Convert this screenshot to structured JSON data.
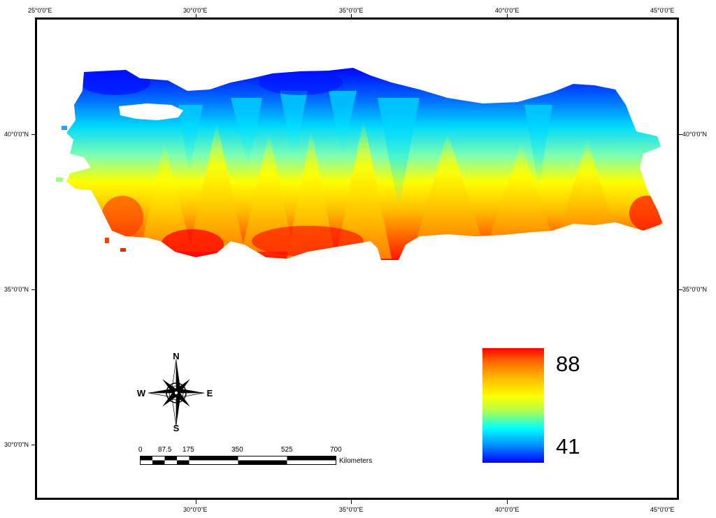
{
  "map": {
    "lon_labels": [
      "25°0'0\"E",
      "30°0'0\"E",
      "35°0'0\"E",
      "40°0'0\"E",
      "45°0'0\"E"
    ],
    "lat_labels": [
      "40°0'0\"N",
      "35°0'0\"N",
      "30°0'0\"N"
    ],
    "colors": {
      "high": "#ff0000",
      "mid": "#ffff00",
      "low": "#0000ff"
    }
  },
  "legend": {
    "max": "88",
    "min": "41"
  },
  "compass": {
    "n": "N",
    "s": "S",
    "e": "E",
    "w": "W"
  },
  "scale_bar": {
    "ticks": [
      "0",
      "87.5",
      "175",
      "350",
      "525",
      "700"
    ],
    "unit": "Kilometers"
  }
}
